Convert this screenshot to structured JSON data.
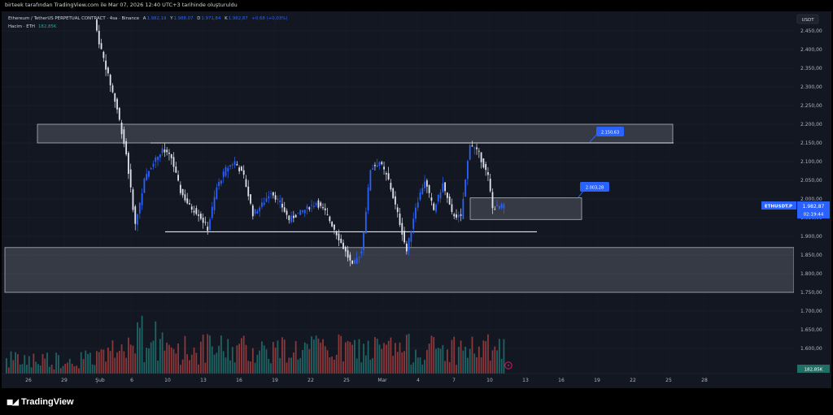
{
  "header": {
    "published_by": "birteek tarafından TradingView.com ile Mar 07, 2026 12:40 UTC+3 tarihinde oluşturuldu"
  },
  "legend": {
    "symbol": "Ethereum / TetherUS PERPETUAL CONTRACT · 4sa · Binance",
    "open_label": "A",
    "open_value": "1.982,19",
    "high_label": "Y",
    "high_value": "1.988,07",
    "low_label": "D",
    "low_value": "1.971,84",
    "close_label": "K",
    "close_value": "1.982,87",
    "change": "+0,68 (+0,03%)",
    "volume_label": "Hacim · ETH",
    "volume_value": "182,85K"
  },
  "price_axis": {
    "currency_label": "USDT",
    "ticks": [
      "2.450,00",
      "2.400,00",
      "2.350,00",
      "2.300,00",
      "2.250,00",
      "2.200,00",
      "2.150,00",
      "2.100,00",
      "2.050,00",
      "2.000,00",
      "1.950,00",
      "1.900,00",
      "1.850,00",
      "1.800,00",
      "1.750,00",
      "1.700,00",
      "1.650,00",
      "1.600,00"
    ]
  },
  "symbol_badge": {
    "label": "ETHUSDT.P",
    "price": "1.982,87",
    "countdown": "02:19:44"
  },
  "volume_badge": "182,85K",
  "time_axis": {
    "ticks": [
      "26",
      "29",
      "Şub",
      "6",
      "10",
      "13",
      "16",
      "19",
      "22",
      "25",
      "Mar",
      "4",
      "7",
      "10",
      "13",
      "16",
      "19",
      "22",
      "25",
      "28"
    ]
  },
  "annotations": {
    "upper_callout": "2.150,63",
    "lower_callout": "2.003,28"
  },
  "chart_data": {
    "type": "candlestick",
    "y_axis_unit": "USDT",
    "ylim": [
      1570,
      2480
    ],
    "grid": true,
    "zones": [
      {
        "from": 2150,
        "to": 2200
      },
      {
        "from": 1945,
        "to": 2003
      },
      {
        "from": 1750,
        "to": 1870
      }
    ],
    "horizontal_lines": [
      2150,
      1912
    ],
    "price_path": [
      {
        "i": 0,
        "p": 2480
      },
      {
        "i": 2,
        "p": 2420
      },
      {
        "i": 6,
        "p": 2330
      },
      {
        "i": 10,
        "p": 2240
      },
      {
        "i": 14,
        "p": 2120
      },
      {
        "i": 18,
        "p": 1930
      },
      {
        "i": 22,
        "p": 2050
      },
      {
        "i": 26,
        "p": 2100
      },
      {
        "i": 30,
        "p": 2130
      },
      {
        "i": 34,
        "p": 2110
      },
      {
        "i": 38,
        "p": 2020
      },
      {
        "i": 42,
        "p": 1980
      },
      {
        "i": 46,
        "p": 1960
      },
      {
        "i": 50,
        "p": 1920
      },
      {
        "i": 54,
        "p": 2030
      },
      {
        "i": 58,
        "p": 2080
      },
      {
        "i": 62,
        "p": 2100
      },
      {
        "i": 66,
        "p": 2060
      },
      {
        "i": 70,
        "p": 1960
      },
      {
        "i": 74,
        "p": 1985
      },
      {
        "i": 78,
        "p": 2020
      },
      {
        "i": 82,
        "p": 1990
      },
      {
        "i": 86,
        "p": 1945
      },
      {
        "i": 90,
        "p": 1960
      },
      {
        "i": 94,
        "p": 1975
      },
      {
        "i": 98,
        "p": 1990
      },
      {
        "i": 102,
        "p": 1965
      },
      {
        "i": 106,
        "p": 1920
      },
      {
        "i": 110,
        "p": 1870
      },
      {
        "i": 114,
        "p": 1820
      },
      {
        "i": 118,
        "p": 1860
      },
      {
        "i": 122,
        "p": 2080
      },
      {
        "i": 126,
        "p": 2100
      },
      {
        "i": 130,
        "p": 2050
      },
      {
        "i": 134,
        "p": 1960
      },
      {
        "i": 138,
        "p": 1860
      },
      {
        "i": 142,
        "p": 1980
      },
      {
        "i": 146,
        "p": 2050
      },
      {
        "i": 150,
        "p": 1970
      },
      {
        "i": 154,
        "p": 2040
      },
      {
        "i": 158,
        "p": 1960
      },
      {
        "i": 162,
        "p": 1950
      },
      {
        "i": 166,
        "p": 2150
      },
      {
        "i": 170,
        "p": 2120
      },
      {
        "i": 174,
        "p": 2060
      },
      {
        "i": 176,
        "p": 1975
      },
      {
        "i": 181,
        "p": 1983
      }
    ]
  }
}
